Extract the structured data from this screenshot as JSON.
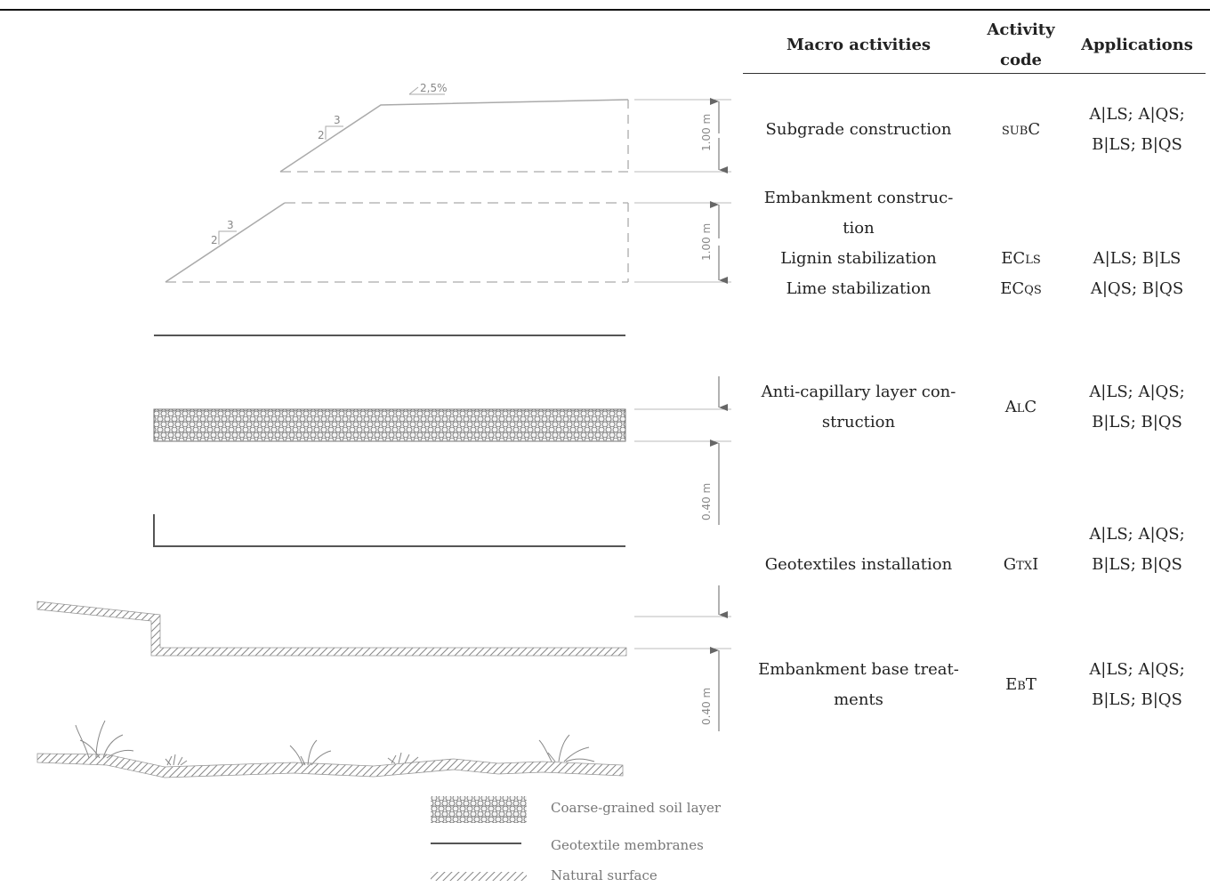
{
  "table": {
    "headers": {
      "macro": "Macro activities",
      "code_line1": "Activity",
      "code_line2": "code",
      "applications": "Applications"
    },
    "rows": [
      {
        "macro": [
          "Subgrade construction"
        ],
        "code": {
          "pre": "",
          "small": "SUB",
          "post": "C"
        },
        "applications": [
          "A|LS; A|QS;",
          "B|LS; B|QS"
        ]
      },
      {
        "macro": [
          "Embankment construc-",
          "tion",
          "Lignin stabilization",
          "Lime stabilization"
        ],
        "codes": [
          {
            "pre": "EC",
            "small": "LS",
            "post": ""
          },
          {
            "pre": "EC",
            "small": "QS",
            "post": ""
          }
        ],
        "applications": [
          "A|LS; B|LS",
          "A|QS; B|QS"
        ]
      },
      {
        "macro": [
          "Anti-capillary layer con-",
          "struction"
        ],
        "code": {
          "pre": "A",
          "small": "L",
          "post": "C"
        },
        "applications": [
          "A|LS; A|QS;",
          "B|LS; B|QS"
        ]
      },
      {
        "macro": [
          "Geotextiles installation"
        ],
        "code": {
          "pre": "G",
          "small": "TX",
          "post": "I"
        },
        "applications": [
          "A|LS; A|QS;",
          "B|LS; B|QS"
        ]
      },
      {
        "macro": [
          "Embankment base treat-",
          "ments"
        ],
        "code": {
          "pre": "E",
          "small": "B",
          "post": "T"
        },
        "applications": [
          "A|LS; A|QS;",
          "B|LS; B|QS"
        ]
      }
    ]
  },
  "drawing": {
    "slope_label": "2,5%",
    "ratio_rise": "2",
    "ratio_run": "3",
    "dim_subgrade": "1.00 m",
    "dim_embankment": "1.00 m",
    "dim_anticap": "0.40 m",
    "dim_base": "0.40 m"
  },
  "legend": {
    "coarse": "Coarse-grained soil layer",
    "geotextile": "Geotextile membranes",
    "natural": "Natural surface"
  }
}
